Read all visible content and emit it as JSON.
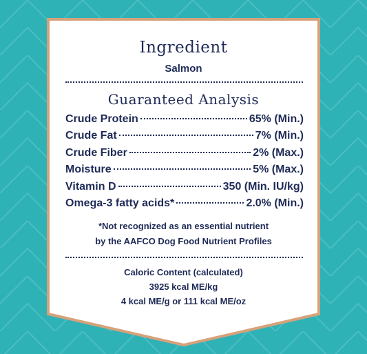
{
  "header": {
    "title": "Ingredient",
    "ingredient": "Salmon"
  },
  "analysis": {
    "title": "Guaranteed Analysis",
    "rows": [
      [
        "Crude Protein",
        "65% (Min.)"
      ],
      [
        "Crude Fat",
        "7% (Min.)"
      ],
      [
        "Crude Fiber",
        "2% (Max.)"
      ],
      [
        "Moisture",
        "5% (Max.)"
      ],
      [
        "Vitamin D",
        "350 (Min. IU/kg)"
      ],
      [
        "Omega-3 fatty acids*",
        "2.0% (Min.)"
      ]
    ],
    "footnote": [
      "*Not recognized as an essential nutrient",
      "by the AAFCO Dog Food Nutrient Profiles"
    ]
  },
  "calories": [
    "Caloric Content (calculated)",
    "3925 kcal ME/kg",
    "4 kcal ME/g or 111 kcal ME/oz"
  ]
}
